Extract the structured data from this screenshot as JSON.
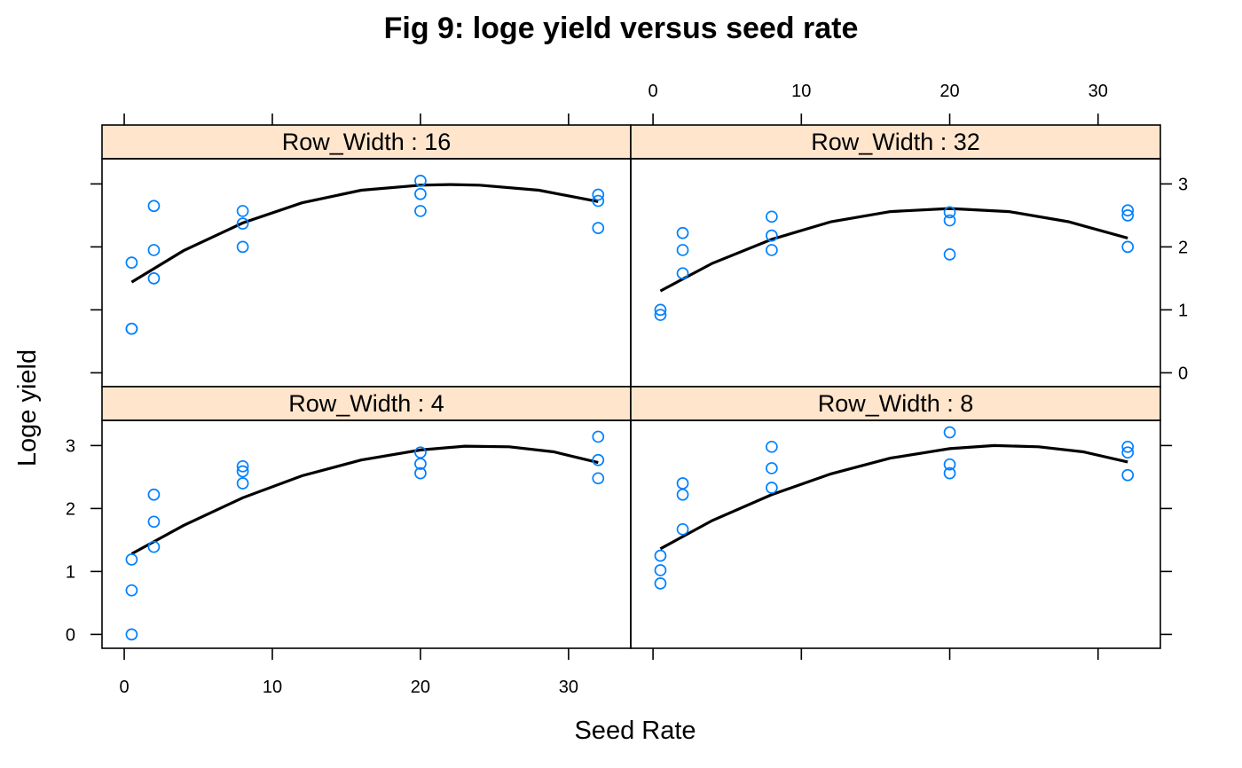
{
  "colors": {
    "strip_fill": "#ffe5cc",
    "point_stroke": "#0080ff",
    "line": "#000000",
    "background": "#ffffff"
  },
  "chart_data": {
    "type": "scatter",
    "title": "Fig 9: loge yield versus seed rate",
    "xlabel": "Seed Rate",
    "ylabel": "Loge yield",
    "xlim": [
      -1.5,
      34.2
    ],
    "ylim": [
      -0.22,
      3.4
    ],
    "x_ticks": [
      0,
      10,
      20,
      30
    ],
    "y_ticks": [
      0,
      1,
      2,
      3
    ],
    "x_tick_labels": [
      "0",
      "10",
      "20",
      "30"
    ],
    "y_tick_labels": [
      "0",
      "1",
      "2",
      "3"
    ],
    "layout": "2x2 trellis",
    "grid": false,
    "fit": "quadratic curve per panel",
    "panels": [
      {
        "strip_label": "Row_Width : 16",
        "row": "top",
        "col": "left",
        "points": [
          {
            "x": 0.5,
            "y": 1.75
          },
          {
            "x": 0.5,
            "y": 0.7
          },
          {
            "x": 0.5,
            "y": 0.7
          },
          {
            "x": 2,
            "y": 2.65
          },
          {
            "x": 2,
            "y": 1.95
          },
          {
            "x": 2,
            "y": 1.5
          },
          {
            "x": 8,
            "y": 2.57
          },
          {
            "x": 8,
            "y": 2.37
          },
          {
            "x": 8,
            "y": 2.0
          },
          {
            "x": 20,
            "y": 3.05
          },
          {
            "x": 20,
            "y": 2.84
          },
          {
            "x": 20,
            "y": 2.57
          },
          {
            "x": 32,
            "y": 2.83
          },
          {
            "x": 32,
            "y": 2.73
          },
          {
            "x": 32,
            "y": 2.3
          }
        ],
        "fit_curve": [
          {
            "x": 0.5,
            "y": 1.44
          },
          {
            "x": 4,
            "y": 1.94
          },
          {
            "x": 8,
            "y": 2.38
          },
          {
            "x": 12,
            "y": 2.7
          },
          {
            "x": 16,
            "y": 2.9
          },
          {
            "x": 20,
            "y": 2.98
          },
          {
            "x": 22,
            "y": 2.99
          },
          {
            "x": 24,
            "y": 2.98
          },
          {
            "x": 28,
            "y": 2.9
          },
          {
            "x": 32,
            "y": 2.72
          }
        ]
      },
      {
        "strip_label": "Row_Width : 32",
        "row": "top",
        "col": "right",
        "points": [
          {
            "x": 0.5,
            "y": 1.0
          },
          {
            "x": 0.5,
            "y": 0.92
          },
          {
            "x": 2,
            "y": 2.22
          },
          {
            "x": 2,
            "y": 1.95
          },
          {
            "x": 2,
            "y": 1.58
          },
          {
            "x": 8,
            "y": 2.48
          },
          {
            "x": 8,
            "y": 2.18
          },
          {
            "x": 8,
            "y": 1.95
          },
          {
            "x": 20,
            "y": 2.55
          },
          {
            "x": 20,
            "y": 2.42
          },
          {
            "x": 20,
            "y": 1.88
          },
          {
            "x": 32,
            "y": 2.58
          },
          {
            "x": 32,
            "y": 2.5
          },
          {
            "x": 32,
            "y": 2.0
          }
        ],
        "fit_curve": [
          {
            "x": 0.5,
            "y": 1.3
          },
          {
            "x": 4,
            "y": 1.74
          },
          {
            "x": 8,
            "y": 2.12
          },
          {
            "x": 12,
            "y": 2.4
          },
          {
            "x": 16,
            "y": 2.56
          },
          {
            "x": 20,
            "y": 2.61
          },
          {
            "x": 24,
            "y": 2.56
          },
          {
            "x": 28,
            "y": 2.4
          },
          {
            "x": 32,
            "y": 2.14
          }
        ]
      },
      {
        "strip_label": "Row_Width : 4",
        "row": "bottom",
        "col": "left",
        "points": [
          {
            "x": 0.5,
            "y": 1.19
          },
          {
            "x": 0.5,
            "y": 0.7
          },
          {
            "x": 0.5,
            "y": 0.0
          },
          {
            "x": 2,
            "y": 2.22
          },
          {
            "x": 2,
            "y": 1.79
          },
          {
            "x": 2,
            "y": 1.39
          },
          {
            "x": 8,
            "y": 2.67
          },
          {
            "x": 8,
            "y": 2.59
          },
          {
            "x": 8,
            "y": 2.4
          },
          {
            "x": 20,
            "y": 2.89
          },
          {
            "x": 20,
            "y": 2.71
          },
          {
            "x": 20,
            "y": 2.56
          },
          {
            "x": 32,
            "y": 3.14
          },
          {
            "x": 32,
            "y": 2.77
          },
          {
            "x": 32,
            "y": 2.48
          }
        ],
        "fit_curve": [
          {
            "x": 0.5,
            "y": 1.28
          },
          {
            "x": 4,
            "y": 1.73
          },
          {
            "x": 8,
            "y": 2.17
          },
          {
            "x": 12,
            "y": 2.52
          },
          {
            "x": 16,
            "y": 2.77
          },
          {
            "x": 20,
            "y": 2.93
          },
          {
            "x": 23,
            "y": 2.99
          },
          {
            "x": 26,
            "y": 2.98
          },
          {
            "x": 29,
            "y": 2.9
          },
          {
            "x": 32,
            "y": 2.73
          }
        ]
      },
      {
        "strip_label": "Row_Width : 8",
        "row": "bottom",
        "col": "right",
        "points": [
          {
            "x": 0.5,
            "y": 1.25
          },
          {
            "x": 0.5,
            "y": 1.02
          },
          {
            "x": 0.5,
            "y": 0.81
          },
          {
            "x": 2,
            "y": 2.4
          },
          {
            "x": 2,
            "y": 2.22
          },
          {
            "x": 2,
            "y": 1.67
          },
          {
            "x": 8,
            "y": 2.98
          },
          {
            "x": 8,
            "y": 2.64
          },
          {
            "x": 8,
            "y": 2.33
          },
          {
            "x": 20,
            "y": 3.21
          },
          {
            "x": 20,
            "y": 2.7
          },
          {
            "x": 20,
            "y": 2.56
          },
          {
            "x": 32,
            "y": 2.98
          },
          {
            "x": 32,
            "y": 2.89
          },
          {
            "x": 32,
            "y": 2.53
          }
        ],
        "fit_curve": [
          {
            "x": 0.5,
            "y": 1.36
          },
          {
            "x": 4,
            "y": 1.81
          },
          {
            "x": 8,
            "y": 2.22
          },
          {
            "x": 12,
            "y": 2.55
          },
          {
            "x": 16,
            "y": 2.8
          },
          {
            "x": 20,
            "y": 2.95
          },
          {
            "x": 23,
            "y": 3.0
          },
          {
            "x": 26,
            "y": 2.98
          },
          {
            "x": 29,
            "y": 2.9
          },
          {
            "x": 32,
            "y": 2.74
          }
        ]
      }
    ]
  }
}
